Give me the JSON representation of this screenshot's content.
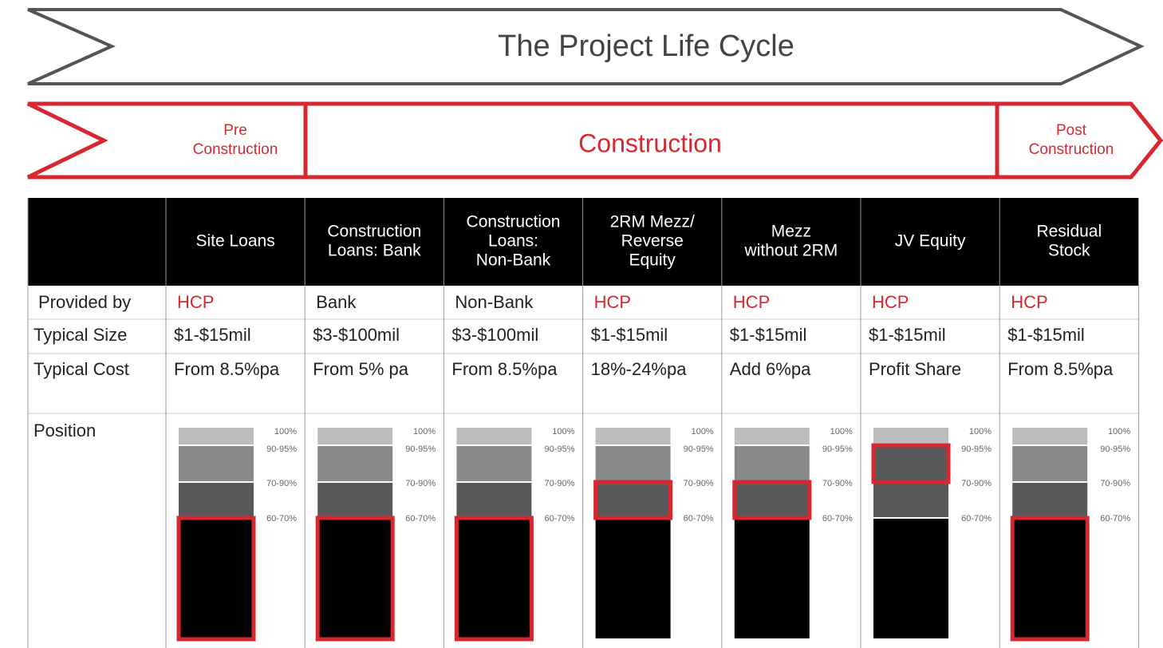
{
  "header": {
    "title": "The Project Life Cycle"
  },
  "phases": [
    {
      "lines": [
        "Pre",
        "Construction"
      ]
    },
    {
      "lines": [
        "Construction"
      ]
    },
    {
      "lines": [
        "Post",
        "Construction"
      ]
    }
  ],
  "row_labels": [
    "Provided by",
    "Typical Size",
    "Typical Cost",
    "Position"
  ],
  "position_levels": [
    "100%",
    "90-95%",
    "70-90%",
    "60-70%"
  ],
  "columns": [
    {
      "lines": [
        "Site Loans"
      ],
      "provided_by": "HCP",
      "provider_color": "#d7282f",
      "size": "$1-$15mil",
      "cost": "From 8.5%pa",
      "highlight": 3
    },
    {
      "lines": [
        "Construction",
        "Loans: Bank"
      ],
      "provided_by": "Bank",
      "provider_color": "#222222",
      "size": "$3-$100mil",
      "cost": "From 5% pa",
      "highlight": 3
    },
    {
      "lines": [
        "Construction",
        "Loans:",
        "Non-Bank"
      ],
      "provided_by": "Non-Bank",
      "provider_color": "#222222",
      "size": "$3-$100mil",
      "cost": "From 8.5%pa",
      "highlight": 3
    },
    {
      "lines": [
        "2RM Mezz/",
        "Reverse",
        "Equity"
      ],
      "provided_by": "HCP",
      "provider_color": "#d7282f",
      "size": "$1-$15mil",
      "cost": "18%-24%pa",
      "highlight": 2
    },
    {
      "lines": [
        "Mezz",
        "without 2RM"
      ],
      "provided_by": "HCP",
      "provider_color": "#d7282f",
      "size": "$1-$15mil",
      "cost": "Add 6%pa",
      "highlight": 2
    },
    {
      "lines": [
        "JV Equity"
      ],
      "provided_by": "HCP",
      "provider_color": "#d7282f",
      "size": "$1-$15mil",
      "cost": "Profit Share",
      "highlight": 1
    },
    {
      "lines": [
        "Residual",
        "Stock"
      ],
      "provided_by": "HCP",
      "provider_color": "#d7282f",
      "size": "$1-$15mil",
      "cost": "From 8.5%pa",
      "highlight": 3
    }
  ]
}
